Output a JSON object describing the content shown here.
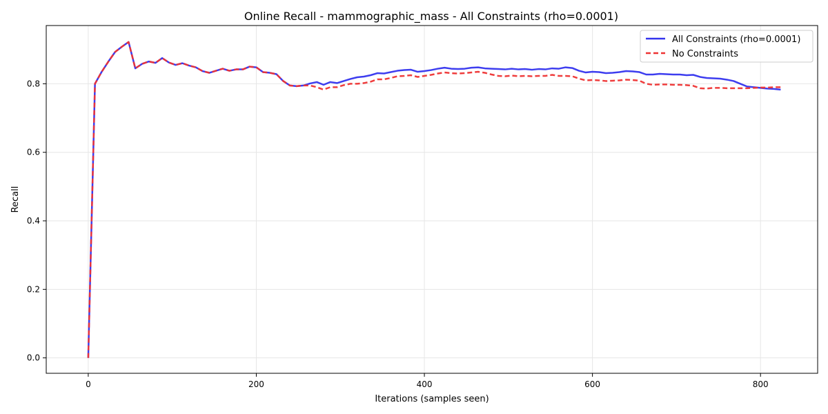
{
  "chart_data": {
    "type": "line",
    "title": "Online Recall - mammographic_mass - All Constraints (rho=0.0001)",
    "xlabel": "Iterations (samples seen)",
    "ylabel": "Recall",
    "xlim": [
      -50,
      868
    ],
    "ylim": [
      -0.045,
      0.97
    ],
    "xticks": [
      0,
      200,
      400,
      600,
      800
    ],
    "yticks": [
      0.0,
      0.2,
      0.4,
      0.6,
      0.8
    ],
    "xtick_labels": [
      "0",
      "200",
      "400",
      "600",
      "800"
    ],
    "ytick_labels": [
      "0.0",
      "0.2",
      "0.4",
      "0.6",
      "0.8"
    ],
    "grid": true,
    "legend_position": "top-right",
    "series": [
      {
        "name": "All Constraints (rho=0.0001)",
        "color": "#3333ee",
        "style": "solid",
        "points": [
          [
            0,
            0.0
          ],
          [
            8,
            0.8
          ],
          [
            16,
            0.835
          ],
          [
            24,
            0.865
          ],
          [
            32,
            0.893
          ],
          [
            40,
            0.908
          ],
          [
            48,
            0.922
          ],
          [
            56,
            0.845
          ],
          [
            64,
            0.858
          ],
          [
            72,
            0.865
          ],
          [
            80,
            0.861
          ],
          [
            88,
            0.875
          ],
          [
            96,
            0.862
          ],
          [
            104,
            0.855
          ],
          [
            112,
            0.86
          ],
          [
            120,
            0.853
          ],
          [
            128,
            0.848
          ],
          [
            136,
            0.837
          ],
          [
            144,
            0.832
          ],
          [
            152,
            0.838
          ],
          [
            160,
            0.844
          ],
          [
            168,
            0.838
          ],
          [
            176,
            0.842
          ],
          [
            184,
            0.842
          ],
          [
            192,
            0.85
          ],
          [
            200,
            0.848
          ],
          [
            208,
            0.834
          ],
          [
            216,
            0.832
          ],
          [
            224,
            0.828
          ],
          [
            232,
            0.808
          ],
          [
            240,
            0.795
          ],
          [
            248,
            0.793
          ],
          [
            256,
            0.795
          ],
          [
            264,
            0.801
          ],
          [
            272,
            0.805
          ],
          [
            280,
            0.797
          ],
          [
            288,
            0.805
          ],
          [
            296,
            0.802
          ],
          [
            304,
            0.808
          ],
          [
            312,
            0.814
          ],
          [
            320,
            0.819
          ],
          [
            328,
            0.821
          ],
          [
            336,
            0.825
          ],
          [
            344,
            0.831
          ],
          [
            352,
            0.83
          ],
          [
            360,
            0.834
          ],
          [
            368,
            0.838
          ],
          [
            376,
            0.84
          ],
          [
            384,
            0.841
          ],
          [
            392,
            0.835
          ],
          [
            400,
            0.837
          ],
          [
            408,
            0.84
          ],
          [
            416,
            0.844
          ],
          [
            424,
            0.847
          ],
          [
            432,
            0.844
          ],
          [
            440,
            0.843
          ],
          [
            448,
            0.844
          ],
          [
            456,
            0.847
          ],
          [
            464,
            0.848
          ],
          [
            472,
            0.845
          ],
          [
            480,
            0.844
          ],
          [
            488,
            0.843
          ],
          [
            496,
            0.842
          ],
          [
            504,
            0.844
          ],
          [
            512,
            0.842
          ],
          [
            520,
            0.843
          ],
          [
            528,
            0.841
          ],
          [
            536,
            0.843
          ],
          [
            544,
            0.842
          ],
          [
            552,
            0.845
          ],
          [
            560,
            0.844
          ],
          [
            568,
            0.848
          ],
          [
            576,
            0.846
          ],
          [
            584,
            0.838
          ],
          [
            592,
            0.833
          ],
          [
            600,
            0.835
          ],
          [
            608,
            0.834
          ],
          [
            616,
            0.831
          ],
          [
            624,
            0.832
          ],
          [
            632,
            0.834
          ],
          [
            640,
            0.837
          ],
          [
            648,
            0.836
          ],
          [
            656,
            0.834
          ],
          [
            664,
            0.827
          ],
          [
            672,
            0.827
          ],
          [
            680,
            0.829
          ],
          [
            688,
            0.828
          ],
          [
            696,
            0.827
          ],
          [
            704,
            0.827
          ],
          [
            712,
            0.825
          ],
          [
            720,
            0.826
          ],
          [
            728,
            0.82
          ],
          [
            736,
            0.817
          ],
          [
            744,
            0.816
          ],
          [
            752,
            0.815
          ],
          [
            760,
            0.812
          ],
          [
            768,
            0.808
          ],
          [
            776,
            0.8
          ],
          [
            784,
            0.792
          ],
          [
            792,
            0.79
          ],
          [
            800,
            0.788
          ],
          [
            808,
            0.786
          ],
          [
            816,
            0.785
          ],
          [
            824,
            0.783
          ]
        ]
      },
      {
        "name": "No Constraints",
        "color": "#ee3333",
        "style": "dashed",
        "points": [
          [
            0,
            0.0
          ],
          [
            8,
            0.8
          ],
          [
            16,
            0.835
          ],
          [
            24,
            0.865
          ],
          [
            32,
            0.893
          ],
          [
            40,
            0.908
          ],
          [
            48,
            0.922
          ],
          [
            56,
            0.845
          ],
          [
            64,
            0.858
          ],
          [
            72,
            0.865
          ],
          [
            80,
            0.861
          ],
          [
            88,
            0.875
          ],
          [
            96,
            0.862
          ],
          [
            104,
            0.855
          ],
          [
            112,
            0.86
          ],
          [
            120,
            0.853
          ],
          [
            128,
            0.848
          ],
          [
            136,
            0.837
          ],
          [
            144,
            0.832
          ],
          [
            152,
            0.838
          ],
          [
            160,
            0.844
          ],
          [
            168,
            0.838
          ],
          [
            176,
            0.842
          ],
          [
            184,
            0.842
          ],
          [
            192,
            0.85
          ],
          [
            200,
            0.848
          ],
          [
            208,
            0.834
          ],
          [
            216,
            0.832
          ],
          [
            224,
            0.828
          ],
          [
            232,
            0.808
          ],
          [
            240,
            0.795
          ],
          [
            248,
            0.793
          ],
          [
            256,
            0.795
          ],
          [
            264,
            0.795
          ],
          [
            272,
            0.79
          ],
          [
            280,
            0.783
          ],
          [
            288,
            0.79
          ],
          [
            296,
            0.79
          ],
          [
            304,
            0.796
          ],
          [
            312,
            0.8
          ],
          [
            320,
            0.8
          ],
          [
            328,
            0.802
          ],
          [
            336,
            0.806
          ],
          [
            344,
            0.813
          ],
          [
            352,
            0.813
          ],
          [
            360,
            0.817
          ],
          [
            368,
            0.822
          ],
          [
            376,
            0.823
          ],
          [
            384,
            0.825
          ],
          [
            392,
            0.82
          ],
          [
            400,
            0.823
          ],
          [
            408,
            0.826
          ],
          [
            416,
            0.83
          ],
          [
            424,
            0.833
          ],
          [
            432,
            0.831
          ],
          [
            440,
            0.83
          ],
          [
            448,
            0.831
          ],
          [
            456,
            0.833
          ],
          [
            464,
            0.835
          ],
          [
            472,
            0.832
          ],
          [
            480,
            0.827
          ],
          [
            488,
            0.823
          ],
          [
            496,
            0.822
          ],
          [
            504,
            0.824
          ],
          [
            512,
            0.822
          ],
          [
            520,
            0.823
          ],
          [
            528,
            0.822
          ],
          [
            536,
            0.823
          ],
          [
            544,
            0.823
          ],
          [
            552,
            0.826
          ],
          [
            560,
            0.823
          ],
          [
            568,
            0.823
          ],
          [
            576,
            0.822
          ],
          [
            584,
            0.815
          ],
          [
            592,
            0.81
          ],
          [
            600,
            0.811
          ],
          [
            608,
            0.81
          ],
          [
            616,
            0.808
          ],
          [
            624,
            0.809
          ],
          [
            632,
            0.81
          ],
          [
            640,
            0.812
          ],
          [
            648,
            0.811
          ],
          [
            656,
            0.809
          ],
          [
            664,
            0.8
          ],
          [
            672,
            0.797
          ],
          [
            680,
            0.798
          ],
          [
            688,
            0.798
          ],
          [
            696,
            0.797
          ],
          [
            704,
            0.797
          ],
          [
            712,
            0.796
          ],
          [
            720,
            0.794
          ],
          [
            728,
            0.787
          ],
          [
            736,
            0.786
          ],
          [
            744,
            0.788
          ],
          [
            752,
            0.788
          ],
          [
            760,
            0.787
          ],
          [
            768,
            0.787
          ],
          [
            776,
            0.787
          ],
          [
            784,
            0.787
          ],
          [
            792,
            0.788
          ],
          [
            800,
            0.789
          ],
          [
            808,
            0.789
          ],
          [
            816,
            0.79
          ],
          [
            824,
            0.79
          ]
        ]
      }
    ]
  }
}
